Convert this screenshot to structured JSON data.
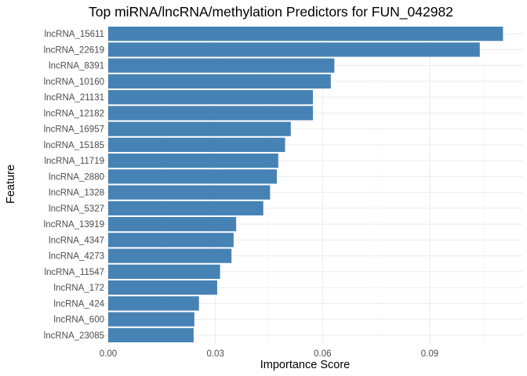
{
  "chart_data": {
    "type": "bar",
    "orientation": "horizontal",
    "title": "Top miRNA/lncRNA/methylation Predictors for FUN_042982",
    "xlabel": "Importance Score",
    "ylabel": "Feature",
    "xlim": [
      0,
      0.1125
    ],
    "xticks": [
      0.0,
      0.03,
      0.06,
      0.09
    ],
    "xtick_labels": [
      "0.00",
      "0.03",
      "0.06",
      "0.09"
    ],
    "grid": true,
    "bar_color": "#4682B4",
    "categories": [
      "lncRNA_15611",
      "lncRNA_22619",
      "lncRNA_8391",
      "lncRNA_10160",
      "lncRNA_21131",
      "lncRNA_12182",
      "lncRNA_16957",
      "lncRNA_15185",
      "lncRNA_11719",
      "lncRNA_2880",
      "lncRNA_1328",
      "lncRNA_5327",
      "lncRNA_13919",
      "lncRNA_4347",
      "lncRNA_4273",
      "lncRNA_11547",
      "lncRNA_172",
      "lncRNA_424",
      "lncRNA_600",
      "lncRNA_23085"
    ],
    "values": [
      0.1105,
      0.104,
      0.0633,
      0.0623,
      0.0573,
      0.0573,
      0.0511,
      0.0495,
      0.0476,
      0.0472,
      0.0453,
      0.0434,
      0.0358,
      0.0351,
      0.0345,
      0.0313,
      0.0305,
      0.0254,
      0.0241,
      0.0239
    ]
  }
}
